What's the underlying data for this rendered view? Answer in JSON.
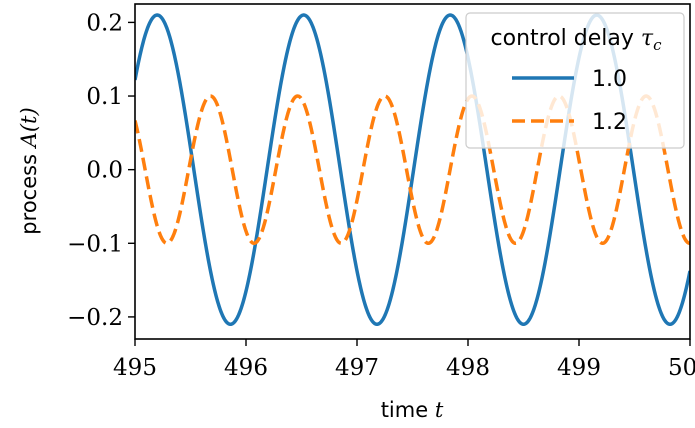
{
  "chart_data": {
    "type": "line",
    "xlabel": "time t",
    "xlabel_text": "time",
    "xlabel_var": "t",
    "ylabel_text": "process",
    "ylabel_var": "A(t)",
    "xlim": [
      495,
      500
    ],
    "ylim": [
      -0.23,
      0.225
    ],
    "x_ticks": [
      495,
      496,
      497,
      498,
      499,
      500
    ],
    "x_tick_labels": [
      "495",
      "496",
      "497",
      "498",
      "499",
      "500"
    ],
    "y_ticks": [
      0.2,
      0.1,
      0.0,
      -0.1,
      -0.2
    ],
    "y_tick_labels": [
      "0.2",
      "0.1",
      "0.0",
      "−0.1",
      "−0.2"
    ],
    "grid": false,
    "legend": {
      "placement": "top-right",
      "title_text": "control delay",
      "title_var": "τ",
      "title_sub": "c"
    },
    "series": [
      {
        "name": "1.0",
        "color": "#1f77b4",
        "style": "solid",
        "amplitude": 0.21,
        "period": 1.32,
        "peak_at": 495.2,
        "x_points": [
          495.0,
          495.2,
          495.53,
          495.86,
          496.19,
          496.52,
          496.85,
          497.18,
          497.51,
          497.84,
          498.17,
          498.5,
          498.83,
          499.16,
          499.49,
          499.82,
          500.0
        ],
        "y_points": [
          0.118,
          0.21,
          0.0,
          -0.21,
          0.0,
          0.21,
          0.0,
          -0.21,
          0.0,
          0.21,
          0.0,
          -0.21,
          0.0,
          0.21,
          0.0,
          -0.21,
          -0.107
        ]
      },
      {
        "name": "1.2",
        "color": "#ff7f0e",
        "style": "dashed",
        "amplitude": 0.1,
        "period": 0.785,
        "peak_at": 495.68,
        "x_points": [
          495.0,
          495.29,
          495.68,
          496.07,
          496.46,
          496.86,
          497.25,
          497.64,
          498.04,
          498.43,
          498.82,
          499.21,
          499.6,
          500.0
        ],
        "y_points": [
          0.08,
          -0.1,
          0.1,
          -0.1,
          0.1,
          -0.1,
          0.1,
          -0.1,
          0.1,
          -0.1,
          0.1,
          -0.1,
          0.1,
          -0.1
        ]
      }
    ]
  }
}
